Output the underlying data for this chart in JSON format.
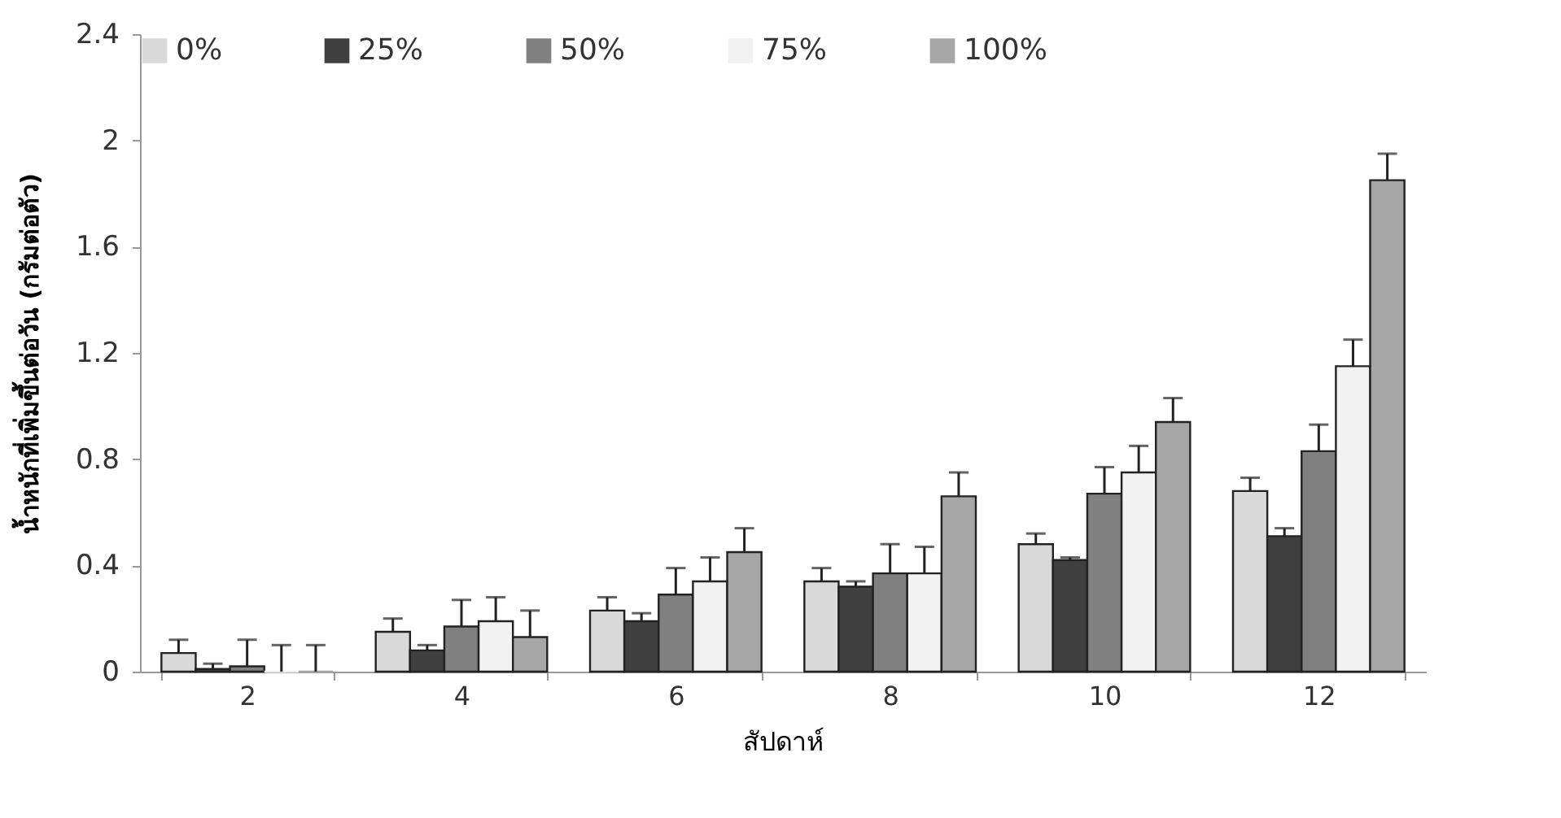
{
  "chart_data": {
    "type": "bar",
    "xlabel": "สัปดาห์",
    "ylabel": "น้ำหนักที่เพิ่มขึ้นต่อวัน (กรัมต่อตัว)",
    "categories": [
      "2",
      "4",
      "6",
      "8",
      "10",
      "12"
    ],
    "series": [
      {
        "name": "0%",
        "color": "#d9d9d9",
        "values": [
          0.07,
          0.15,
          0.23,
          0.34,
          0.48,
          0.68
        ],
        "errors": [
          [
            0.07,
            0.12
          ],
          [
            0.15,
            0.2
          ],
          [
            0.23,
            0.28
          ],
          [
            0.34,
            0.39
          ],
          [
            0.48,
            0.52
          ],
          [
            0.68,
            0.73
          ]
        ]
      },
      {
        "name": "25%",
        "color": "#404040",
        "values": [
          0.01,
          0.08,
          0.19,
          0.32,
          0.42,
          0.51
        ],
        "errors": [
          [
            0.01,
            0.03
          ],
          [
            0.08,
            0.1
          ],
          [
            0.19,
            0.22
          ],
          [
            0.32,
            0.34
          ],
          [
            0.42,
            0.43
          ],
          [
            0.51,
            0.54
          ]
        ]
      },
      {
        "name": "50%",
        "color": "#808080",
        "values": [
          0.02,
          0.17,
          0.29,
          0.37,
          0.67,
          0.83
        ],
        "errors": [
          [
            0.02,
            0.12
          ],
          [
            0.17,
            0.27
          ],
          [
            0.29,
            0.39
          ],
          [
            0.37,
            0.48
          ],
          [
            0.67,
            0.77
          ],
          [
            0.83,
            0.93
          ]
        ]
      },
      {
        "name": "75%",
        "color": "#f2f2f2",
        "values": [
          0,
          0.19,
          0.34,
          0.37,
          0.75,
          1.15
        ],
        "errors": [
          [
            0,
            0.1
          ],
          [
            0.19,
            0.28
          ],
          [
            0.34,
            0.43
          ],
          [
            0.37,
            0.47
          ],
          [
            0.75,
            0.85
          ],
          [
            1.15,
            1.25
          ]
        ]
      },
      {
        "name": "100%",
        "color": "#a6a6a6",
        "values": [
          0,
          0.13,
          0.45,
          0.66,
          0.94,
          1.85
        ],
        "errors": [
          [
            0,
            0.1
          ],
          [
            0.13,
            0.23
          ],
          [
            0.45,
            0.54
          ],
          [
            0.66,
            0.75
          ],
          [
            0.94,
            1.03
          ],
          [
            1.85,
            1.95
          ]
        ]
      }
    ],
    "ylim": [
      0,
      2.4
    ],
    "yticks": [
      0,
      0.4,
      0.8,
      1.2,
      1.6,
      2,
      2.4
    ],
    "grid": false,
    "legend": "top"
  }
}
